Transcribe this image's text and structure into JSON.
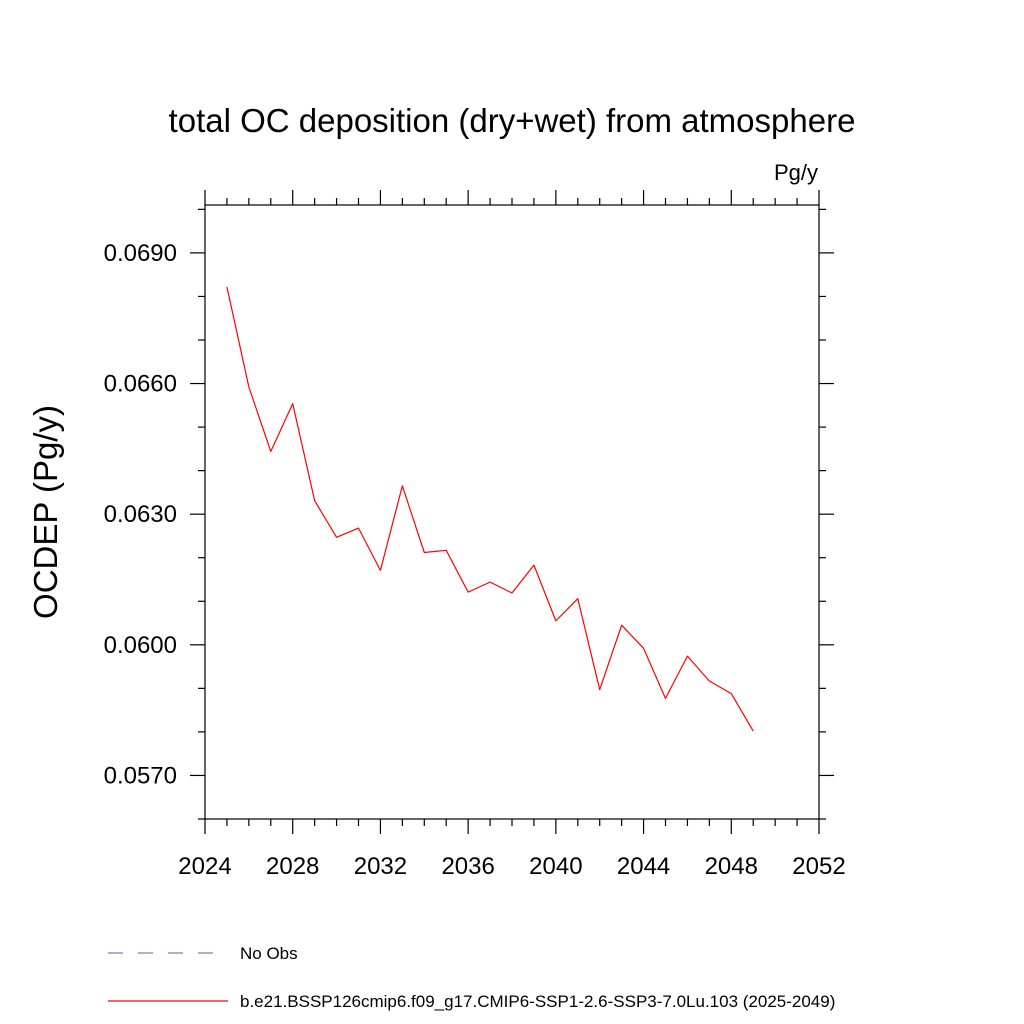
{
  "chart_data": {
    "type": "line",
    "title": "total OC deposition (dry+wet) from atmosphere",
    "units": "Pg/y",
    "ylabel": "OCDEP  (Pg/y)",
    "xlabel": "",
    "xlim": [
      2024,
      2052
    ],
    "ylim": [
      0.056,
      0.0701
    ],
    "x_ticks": [
      2024,
      2028,
      2032,
      2036,
      2040,
      2044,
      2048,
      2052
    ],
    "x_tick_labels": [
      "2024",
      "2028",
      "2032",
      "2036",
      "2040",
      "2044",
      "2048",
      "2052"
    ],
    "y_ticks": [
      0.057,
      0.06,
      0.063,
      0.066,
      0.069
    ],
    "y_tick_labels": [
      "0.0570",
      "0.0600",
      "0.0630",
      "0.0660",
      "0.0690"
    ],
    "y_minor_step": 0.001,
    "x_minor_step": 1,
    "grid": false,
    "legend_position": "bottom",
    "series": [
      {
        "name": "b.e21.BSSP126cmip6.f09_g17.CMIP6-SSP1-2.6-SSP3-7.0Lu.103 (2025-2049)",
        "color": "#ff0000",
        "style": "solid",
        "x": [
          2025,
          2026,
          2027,
          2028,
          2029,
          2030,
          2031,
          2032,
          2033,
          2034,
          2035,
          2036,
          2037,
          2038,
          2039,
          2040,
          2041,
          2042,
          2043,
          2044,
          2045,
          2046,
          2047,
          2048,
          2049
        ],
        "values": [
          0.06822,
          0.06592,
          0.06444,
          0.06554,
          0.06331,
          0.06247,
          0.06268,
          0.06171,
          0.06365,
          0.06212,
          0.06217,
          0.06121,
          0.06144,
          0.06119,
          0.06183,
          0.06055,
          0.06106,
          0.05897,
          0.06045,
          0.05992,
          0.05877,
          0.05974,
          0.05917,
          0.05888,
          0.05802
        ]
      }
    ],
    "legend": [
      {
        "label": "No Obs",
        "color": "#8877bb",
        "style": "dashed"
      },
      {
        "label": "b.e21.BSSP126cmip6.f09_g17.CMIP6-SSP1-2.6-SSP3-7.0Lu.103 (2025-2049)",
        "color": "#ff0000",
        "style": "solid"
      }
    ]
  }
}
